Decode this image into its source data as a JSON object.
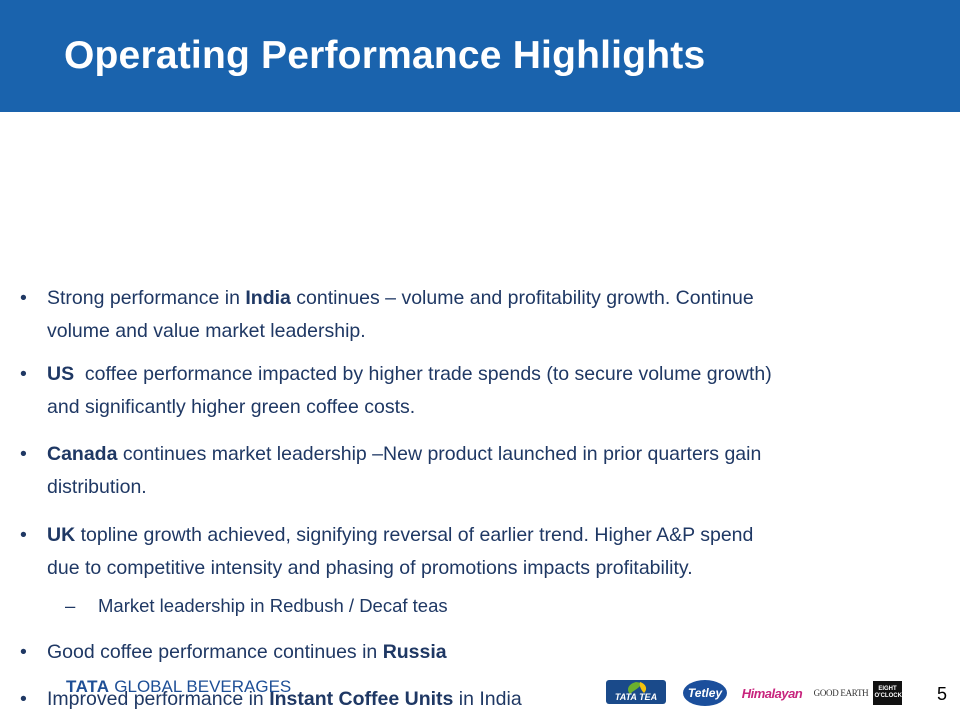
{
  "slide": {
    "title": "Operating Performance Highlights",
    "page_number": "5"
  },
  "bullets": [
    {
      "parts": [
        {
          "text": "Strong performance in ",
          "bold": false
        },
        {
          "text": "India",
          "bold": true
        },
        {
          "text": " continues – volume and profitability growth. Continue",
          "bold": false
        }
      ],
      "line2": "volume and value market leadership."
    },
    {
      "parts": [
        {
          "text": "US",
          "bold": true
        },
        {
          "text": "  coffee performance impacted by higher trade spends (to secure volume growth)",
          "bold": false
        }
      ],
      "line2": "and significantly higher green coffee costs."
    },
    {
      "parts": [
        {
          "text": "Canada",
          "bold": true
        },
        {
          "text": " continues market leadership –New product launched in prior quarters gain",
          "bold": false
        }
      ],
      "line2": "distribution."
    },
    {
      "parts": [
        {
          "text": "UK",
          "bold": true
        },
        {
          "text": " topline growth achieved, signifying reversal of earlier trend. Higher A&P spend",
          "bold": false
        }
      ],
      "line2": "due to competitive intensity and phasing of promotions impacts profitability.",
      "sub": "Market leadership in Redbush / Decaf teas"
    },
    {
      "parts": [
        {
          "text": "Good coffee performance continues in ",
          "bold": false
        },
        {
          "text": "Russia",
          "bold": true
        }
      ]
    },
    {
      "parts": [
        {
          "text": "Improved performance in ",
          "bold": false
        },
        {
          "text": "Instant Coffee Units",
          "bold": true
        },
        {
          "text": " in India",
          "bold": false
        }
      ]
    }
  ],
  "footer": {
    "company_bold": "TATA",
    "company_rest": " GLOBAL BEVERAGES",
    "brands": [
      "TATA TEA",
      "Tetley",
      "Himalayan",
      "GOOD EARTH",
      "EIGHT O'CLOCK"
    ]
  },
  "colors": {
    "header": "#1a63ad",
    "text": "#1f3864"
  }
}
